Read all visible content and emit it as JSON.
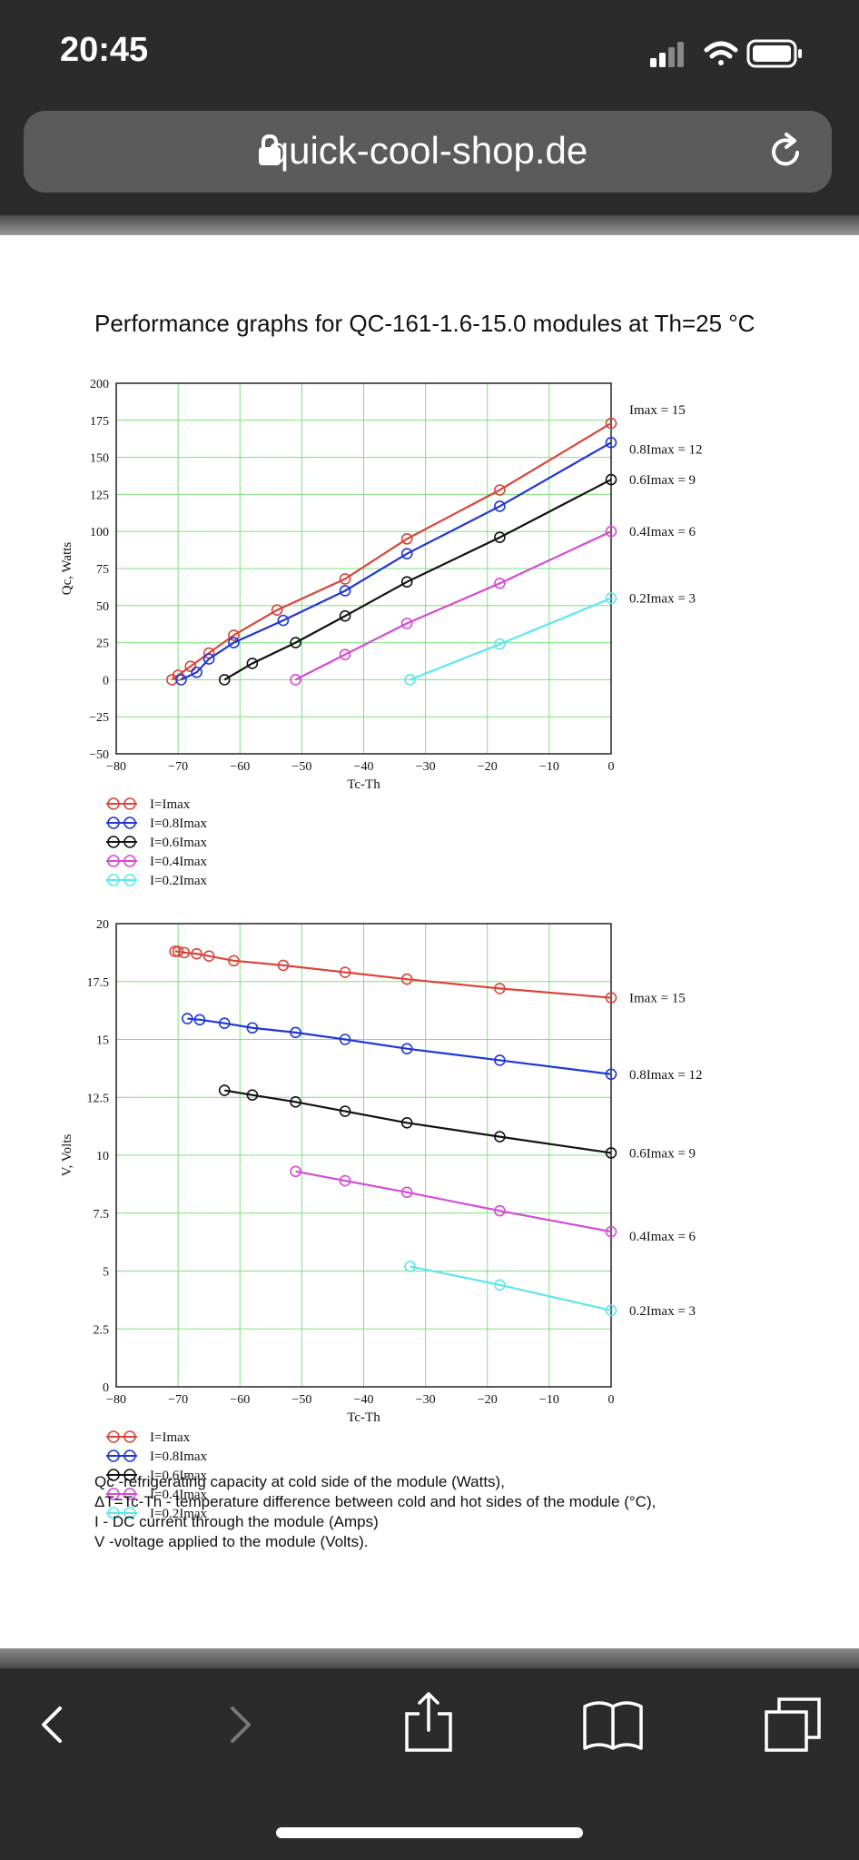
{
  "status_bar": {
    "time": "20:45"
  },
  "browser": {
    "url": "quick-cool-shop.de"
  },
  "page": {
    "title": "Performance graphs for QC-161-1.6-15.0 modules at Th=25 °C",
    "notes": [
      "Qc -refrigerating capacity at cold side of the module (Watts),",
      "ΔT=Tc-Th - temperature difference between cold and hot sides of the module (°C),",
      "I - DC current through the module (Amps)",
      "V -voltage applied to the module (Volts)."
    ]
  },
  "chart_data": [
    {
      "type": "line",
      "xlabel": "Tc-Th",
      "ylabel": "Qc, Watts",
      "xlim": [
        -80,
        0
      ],
      "ylim": [
        -50,
        200
      ],
      "xticks": [
        -80,
        -70,
        -60,
        -50,
        -40,
        -30,
        -20,
        -10,
        0
      ],
      "yticks": [
        -50,
        -25,
        0,
        25,
        50,
        75,
        100,
        125,
        150,
        175,
        200
      ],
      "x_tick_labels": [
        "−80",
        "−70",
        "−60",
        "−50",
        "−40",
        "−30",
        "−20",
        "−10",
        "0"
      ],
      "y_tick_labels": [
        "−50",
        "−25",
        "0",
        "25",
        "50",
        "75",
        "100",
        "125",
        "150",
        "175",
        "200"
      ],
      "grid": true,
      "legend_position": "below",
      "series": [
        {
          "name": "I=Imax",
          "color": "#d9453a",
          "end_label": "Imax = 15",
          "x": [
            -71,
            -70,
            -68,
            -65,
            -61,
            -54,
            -43,
            -33,
            -18,
            0
          ],
          "y": [
            0,
            3,
            9,
            18,
            30,
            47,
            68,
            95,
            128,
            173
          ]
        },
        {
          "name": "I=0.8Imax",
          "color": "#1f36d6",
          "end_label": "0.8Imax = 12",
          "x": [
            -69.5,
            -67,
            -65,
            -61,
            -53,
            -43,
            -33,
            -18,
            0
          ],
          "y": [
            0,
            5,
            14,
            25,
            40,
            60,
            85,
            117,
            160
          ]
        },
        {
          "name": "I=0.6Imax",
          "color": "#111111",
          "end_label": "0.6Imax = 9",
          "x": [
            -62.5,
            -58,
            -51,
            -43,
            -33,
            -18,
            0
          ],
          "y": [
            0,
            11,
            25,
            43,
            66,
            96,
            135
          ]
        },
        {
          "name": "I=0.4Imax",
          "color": "#d44bd4",
          "end_label": "0.4Imax = 6",
          "x": [
            -51,
            -43,
            -33,
            -18,
            0
          ],
          "y": [
            0,
            17,
            38,
            65,
            100
          ]
        },
        {
          "name": "I=0.2Imax",
          "color": "#5ce6ec",
          "end_label": "0.2Imax = 3",
          "x": [
            -32.5,
            -18,
            0
          ],
          "y": [
            0,
            24,
            55
          ]
        }
      ]
    },
    {
      "type": "line",
      "xlabel": "Tc-Th",
      "ylabel": "V, Volts",
      "xlim": [
        -80,
        0
      ],
      "ylim": [
        0,
        20
      ],
      "xticks": [
        -80,
        -70,
        -60,
        -50,
        -40,
        -30,
        -20,
        -10,
        0
      ],
      "yticks": [
        0,
        2.5,
        5,
        7.5,
        10,
        12.5,
        15,
        17.5,
        20
      ],
      "x_tick_labels": [
        "−80",
        "−70",
        "−60",
        "−50",
        "−40",
        "−30",
        "−20",
        "−10",
        "0"
      ],
      "y_tick_labels": [
        "0",
        "2.5",
        "5",
        "7.5",
        "10",
        "12.5",
        "15",
        "17.5",
        "20"
      ],
      "grid": true,
      "legend_position": "below",
      "series": [
        {
          "name": "I=Imax",
          "color": "#d9453a",
          "end_label": "Imax = 15",
          "x": [
            -70.5,
            -70,
            -69,
            -67,
            -65,
            -61,
            -53,
            -43,
            -33,
            -18,
            0
          ],
          "y": [
            18.8,
            18.8,
            18.75,
            18.7,
            18.6,
            18.4,
            18.2,
            17.9,
            17.6,
            17.2,
            16.8
          ]
        },
        {
          "name": "I=0.8Imax",
          "color": "#1f36d6",
          "end_label": "0.8Imax = 12",
          "x": [
            -68.5,
            -66.5,
            -62.5,
            -58,
            -51,
            -43,
            -33,
            -18,
            0
          ],
          "y": [
            15.9,
            15.85,
            15.7,
            15.5,
            15.3,
            15.0,
            14.6,
            14.1,
            13.5
          ]
        },
        {
          "name": "I=0.6Imax",
          "color": "#111111",
          "end_label": "0.6Imax = 9",
          "x": [
            -62.5,
            -58,
            -51,
            -43,
            -33,
            -18,
            0
          ],
          "y": [
            12.8,
            12.6,
            12.3,
            11.9,
            11.4,
            10.8,
            10.1
          ]
        },
        {
          "name": "I=0.4Imax",
          "color": "#d44bd4",
          "end_label": "0.4Imax = 6",
          "x": [
            -51,
            -43,
            -33,
            -18,
            0
          ],
          "y": [
            9.3,
            8.9,
            8.4,
            7.6,
            6.7
          ]
        },
        {
          "name": "I=0.2Imax",
          "color": "#5ce6ec",
          "end_label": "0.2Imax = 3",
          "x": [
            -32.5,
            -18,
            0
          ],
          "y": [
            5.2,
            4.4,
            3.3
          ]
        }
      ]
    }
  ]
}
